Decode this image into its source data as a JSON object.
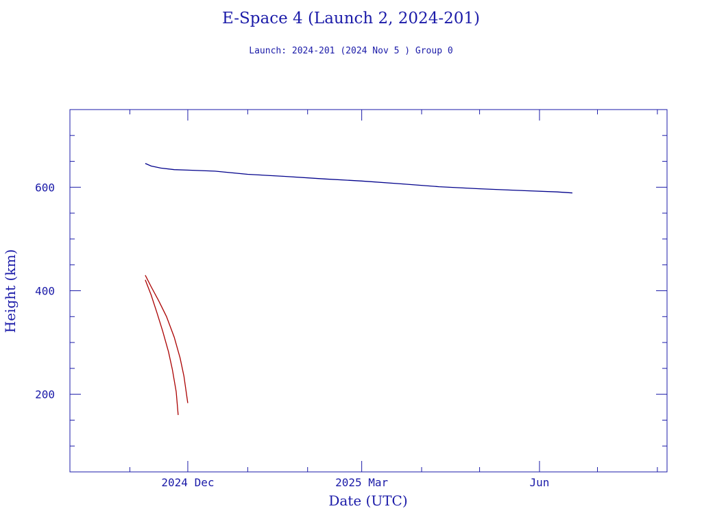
{
  "chart_data": {
    "type": "line",
    "title": "E-Space 4 (Launch 2, 2024-201)",
    "subtitle": "Launch: 2024-201  (2024 Nov  5 )  Group 0",
    "xlabel": "Date (UTC)",
    "ylabel": "Height (km)",
    "ylim": [
      50,
      750
    ],
    "xlim": [
      "2024-10-01",
      "2025-08-06"
    ],
    "x_ticks": [
      {
        "date": "2024-12-01",
        "label": "2024 Dec"
      },
      {
        "date": "2025-03-01",
        "label": "2025 Mar"
      },
      {
        "date": "2025-06-01",
        "label": "Jun"
      }
    ],
    "y_ticks": [
      200,
      400,
      600
    ],
    "grid": false,
    "legend": "none",
    "series": [
      {
        "color": "#00008b",
        "points": [
          [
            "2024-11-09",
            646
          ],
          [
            "2024-11-12",
            641
          ],
          [
            "2024-11-17",
            637
          ],
          [
            "2024-11-24",
            634
          ],
          [
            "2024-12-01",
            633
          ],
          [
            "2024-12-15",
            631
          ],
          [
            "2025-01-01",
            625
          ],
          [
            "2025-01-20",
            621
          ],
          [
            "2025-02-10",
            616
          ],
          [
            "2025-03-01",
            612
          ],
          [
            "2025-03-20",
            607
          ],
          [
            "2025-04-10",
            601
          ],
          [
            "2025-05-01",
            597
          ],
          [
            "2025-05-20",
            594
          ],
          [
            "2025-06-10",
            591
          ],
          [
            "2025-06-18",
            589
          ]
        ]
      },
      {
        "color": "#aa0000",
        "points": [
          [
            "2024-11-09",
            430
          ],
          [
            "2024-11-12",
            408
          ],
          [
            "2024-11-16",
            380
          ],
          [
            "2024-11-20",
            350
          ],
          [
            "2024-11-24",
            310
          ],
          [
            "2024-11-27",
            270
          ],
          [
            "2024-11-29",
            235
          ],
          [
            "2024-12-01",
            183
          ]
        ]
      },
      {
        "color": "#aa0000",
        "points": [
          [
            "2024-11-09",
            421
          ],
          [
            "2024-11-12",
            392
          ],
          [
            "2024-11-15",
            358
          ],
          [
            "2024-11-18",
            322
          ],
          [
            "2024-11-21",
            282
          ],
          [
            "2024-11-23",
            248
          ],
          [
            "2024-11-25",
            205
          ],
          [
            "2024-11-26",
            160
          ]
        ]
      }
    ]
  }
}
